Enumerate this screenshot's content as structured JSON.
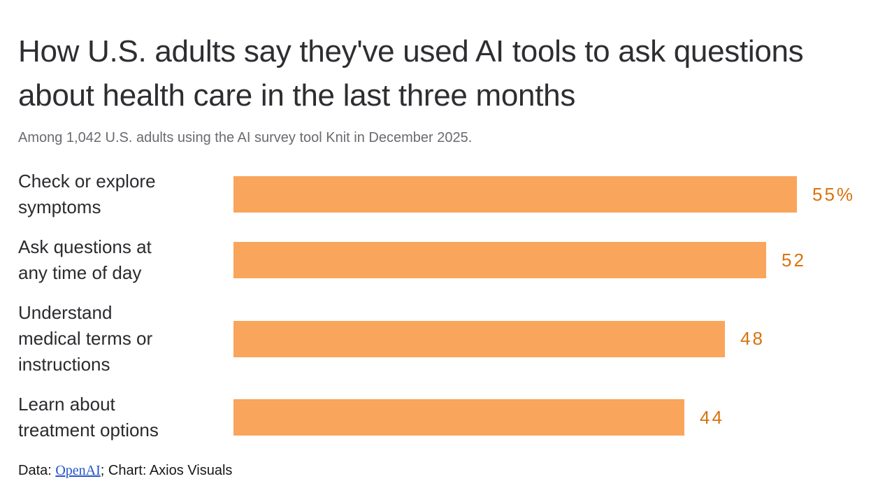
{
  "header": {
    "title": "How U.S. adults say they've used AI tools to ask questions about health care in the last three months",
    "subtitle": "Among 1,042 U.S. adults using the AI survey tool Knit in December 2025."
  },
  "chart_data": {
    "type": "bar",
    "orientation": "horizontal",
    "title": "How U.S. adults say they've used AI tools to ask questions about health care in the last three months",
    "subtitle": "Among 1,042 U.S. adults using the AI survey tool Knit in December 2025.",
    "categories": [
      "Check or explore symptoms",
      "Ask questions at any time of day",
      "Understand medical terms or instructions",
      "Learn about treatment options"
    ],
    "categories_display": [
      "Check or explore\nsymptoms",
      "Ask questions at\nany time of day",
      "Understand\nmedical terms or\ninstructions",
      "Learn about\ntreatment options"
    ],
    "values": [
      55,
      52,
      48,
      44
    ],
    "display_values": [
      "55%",
      "52",
      "48",
      "44"
    ],
    "unit": "%",
    "xlim": [
      0,
      55
    ],
    "grid": false,
    "legend": false,
    "bar_color": "#f9a55c",
    "value_label_color": "#d9730d"
  },
  "footer": {
    "data_label": "Data: ",
    "source_link": "OpenAI",
    "rest": "; Chart: Axios Visuals"
  }
}
